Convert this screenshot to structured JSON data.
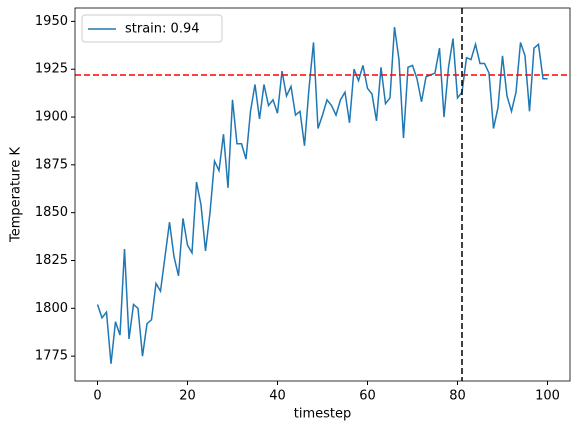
{
  "chart_data": {
    "type": "line",
    "x": [
      0,
      1,
      2,
      3,
      4,
      5,
      6,
      7,
      8,
      9,
      10,
      11,
      12,
      13,
      14,
      15,
      16,
      17,
      18,
      19,
      20,
      21,
      22,
      23,
      24,
      25,
      26,
      27,
      28,
      29,
      30,
      31,
      32,
      33,
      34,
      35,
      36,
      37,
      38,
      39,
      40,
      41,
      42,
      43,
      44,
      45,
      46,
      47,
      48,
      49,
      50,
      51,
      52,
      53,
      54,
      55,
      56,
      57,
      58,
      59,
      60,
      61,
      62,
      63,
      64,
      65,
      66,
      67,
      68,
      69,
      70,
      71,
      72,
      73,
      74,
      75,
      76,
      77,
      78,
      79,
      80,
      81,
      82,
      83,
      84,
      85,
      86,
      87,
      88,
      89,
      90,
      91,
      92,
      93,
      94,
      95,
      96,
      97,
      98,
      99,
      100
    ],
    "series": [
      {
        "name": "strain: 0.94",
        "color": "#1f77b4",
        "values": [
          1802,
          1795,
          1798,
          1771,
          1793,
          1786,
          1831,
          1784,
          1802,
          1800,
          1775,
          1792,
          1794,
          1813,
          1809,
          1827,
          1845,
          1827,
          1817,
          1847,
          1833,
          1829,
          1866,
          1854,
          1830,
          1850,
          1877,
          1872,
          1891,
          1863,
          1909,
          1886,
          1886,
          1878,
          1903,
          1917,
          1899,
          1917,
          1906,
          1909,
          1902,
          1924,
          1911,
          1916,
          1901,
          1903,
          1885,
          1915,
          1939,
          1894,
          1901,
          1909,
          1906,
          1901,
          1909,
          1913,
          1897,
          1925,
          1919,
          1927,
          1915,
          1912,
          1898,
          1926,
          1907,
          1910,
          1947,
          1930,
          1889,
          1926,
          1927,
          1920,
          1908,
          1921,
          1922,
          1923,
          1936,
          1900,
          1926,
          1941,
          1910,
          1913,
          1931,
          1930,
          1938,
          1928,
          1928,
          1923,
          1894,
          1905,
          1932,
          1911,
          1903,
          1913,
          1939,
          1932,
          1903,
          1936,
          1938,
          1920,
          1920
        ]
      }
    ],
    "hlines": [
      {
        "value": 1922,
        "color": "#ff0000"
      }
    ],
    "vlines": [
      {
        "value": 81,
        "color": "#000000"
      }
    ],
    "xlabel": "timestep",
    "ylabel": "Temperature K",
    "xlim": [
      -5,
      105
    ],
    "ylim": [
      1762,
      1957
    ],
    "xticks": [
      0,
      20,
      40,
      60,
      80,
      100
    ],
    "yticks": [
      1775,
      1800,
      1825,
      1850,
      1875,
      1900,
      1925,
      1950
    ],
    "legend": "upper left"
  }
}
